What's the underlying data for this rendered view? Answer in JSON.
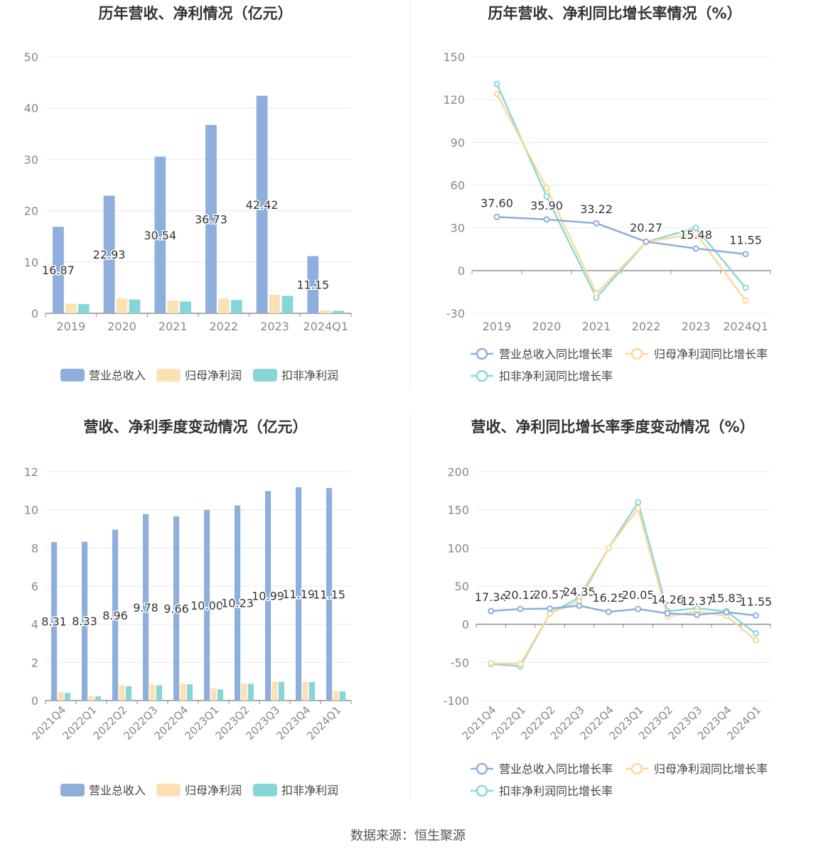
{
  "colors": {
    "revenue": "#8eaedc",
    "net_profit": "#fde1b4",
    "deducted_profit": "#86d6d7",
    "revenue_line": "#8eaedc",
    "net_line": "#fcd99a",
    "deducted_line": "#8ad8d8",
    "grid": "#e6e9f0",
    "axis": "#8b8f99",
    "tick_text": "#888888",
    "title_text": "#333333"
  },
  "footer": {
    "source": "数据来源：恒生聚源"
  },
  "chart_data": [
    {
      "type": "bar",
      "title": "历年营收、净利情况（亿元）",
      "categories": [
        "2019",
        "2020",
        "2021",
        "2022",
        "2023",
        "2024Q1"
      ],
      "ylim": [
        0,
        50
      ],
      "yticks": [
        "0",
        "10",
        "20",
        "30",
        "40",
        "50"
      ],
      "grid": true,
      "legend_position": "bottom",
      "series": [
        {
          "name": "营业总收入",
          "values": [
            16.87,
            22.93,
            30.54,
            36.73,
            42.42,
            11.15
          ],
          "labels": [
            "16.87",
            "22.93",
            "30.54",
            "36.73",
            "42.42",
            "11.15"
          ]
        },
        {
          "name": "归母净利润",
          "values": [
            1.9,
            2.9,
            2.5,
            2.9,
            3.6,
            0.55
          ]
        },
        {
          "name": "扣非净利润",
          "values": [
            1.8,
            2.7,
            2.3,
            2.6,
            3.4,
            0.5
          ]
        }
      ]
    },
    {
      "type": "line",
      "title": "历年营收、净利同比增长率情况（%）",
      "categories": [
        "2019",
        "2020",
        "2021",
        "2022",
        "2023",
        "2024Q1"
      ],
      "ylim": [
        -30,
        150
      ],
      "yticks": [
        "-30",
        "0",
        "30",
        "60",
        "90",
        "120",
        "150"
      ],
      "grid": true,
      "legend_position": "bottom",
      "series": [
        {
          "name": "营业总收入同比增长率",
          "values": [
            37.6,
            35.9,
            33.22,
            20.27,
            15.48,
            11.55
          ],
          "labels": [
            "37.60",
            "35.90",
            "33.22",
            "20.27",
            "15.48",
            "11.55"
          ]
        },
        {
          "name": "归母净利润同比增长率",
          "values": [
            124,
            58,
            -16,
            20,
            26,
            -21
          ]
        },
        {
          "name": "扣非净利润同比增长率",
          "values": [
            131,
            52,
            -19,
            20,
            30,
            -12
          ]
        }
      ]
    },
    {
      "type": "bar",
      "title": "营收、净利季度变动情况（亿元）",
      "categories": [
        "2021Q4",
        "2022Q1",
        "2022Q2",
        "2022Q3",
        "2022Q4",
        "2023Q1",
        "2023Q2",
        "2023Q3",
        "2023Q4",
        "2024Q1"
      ],
      "ylim": [
        0,
        12
      ],
      "yticks": [
        "0",
        "2",
        "4",
        "6",
        "8",
        "10",
        "12"
      ],
      "grid": true,
      "legend_position": "bottom",
      "series": [
        {
          "name": "营业总收入",
          "values": [
            8.31,
            8.33,
            8.96,
            9.78,
            9.66,
            10.0,
            10.23,
            10.99,
            11.19,
            11.15
          ],
          "labels": [
            "8.31",
            "8.33",
            "8.96",
            "9.78",
            "9.66",
            "10.00",
            "10.23",
            "10.99",
            "11.19",
            "11.15"
          ]
        },
        {
          "name": "归母净利润",
          "values": [
            0.45,
            0.25,
            0.82,
            0.85,
            0.9,
            0.65,
            0.9,
            1.0,
            1.0,
            0.5
          ]
        },
        {
          "name": "扣非净利润",
          "values": [
            0.4,
            0.22,
            0.75,
            0.8,
            0.85,
            0.58,
            0.88,
            0.98,
            0.97,
            0.48
          ]
        }
      ]
    },
    {
      "type": "line",
      "title": "营收、净利同比增长率季度变动情况（%）",
      "categories": [
        "2021Q4",
        "2022Q1",
        "2022Q2",
        "2022Q3",
        "2022Q4",
        "2023Q1",
        "2023Q2",
        "2023Q3",
        "2023Q4",
        "2024Q1"
      ],
      "ylim": [
        -100,
        200
      ],
      "yticks": [
        "-100",
        "-50",
        "0",
        "50",
        "100",
        "150",
        "200"
      ],
      "grid": true,
      "legend_position": "bottom",
      "series": [
        {
          "name": "营业总收入同比增长率",
          "values": [
            17.34,
            20.12,
            20.57,
            24.35,
            16.25,
            20.05,
            14.26,
            12.37,
            15.83,
            11.55
          ],
          "labels": [
            "17.34",
            "20.12",
            "20.57",
            "24.35",
            "16.25",
            "20.05",
            "14.26",
            "12.37",
            "15.83",
            "11.55"
          ]
        },
        {
          "name": "归母净利润同比增长率",
          "values": [
            -51,
            -52,
            14,
            30,
            100,
            152,
            10,
            17,
            11,
            -21
          ]
        },
        {
          "name": "扣非净利润同比增长率",
          "values": [
            -52,
            -55,
            14,
            35,
            100,
            160,
            17,
            21,
            17,
            -12
          ]
        }
      ]
    }
  ]
}
